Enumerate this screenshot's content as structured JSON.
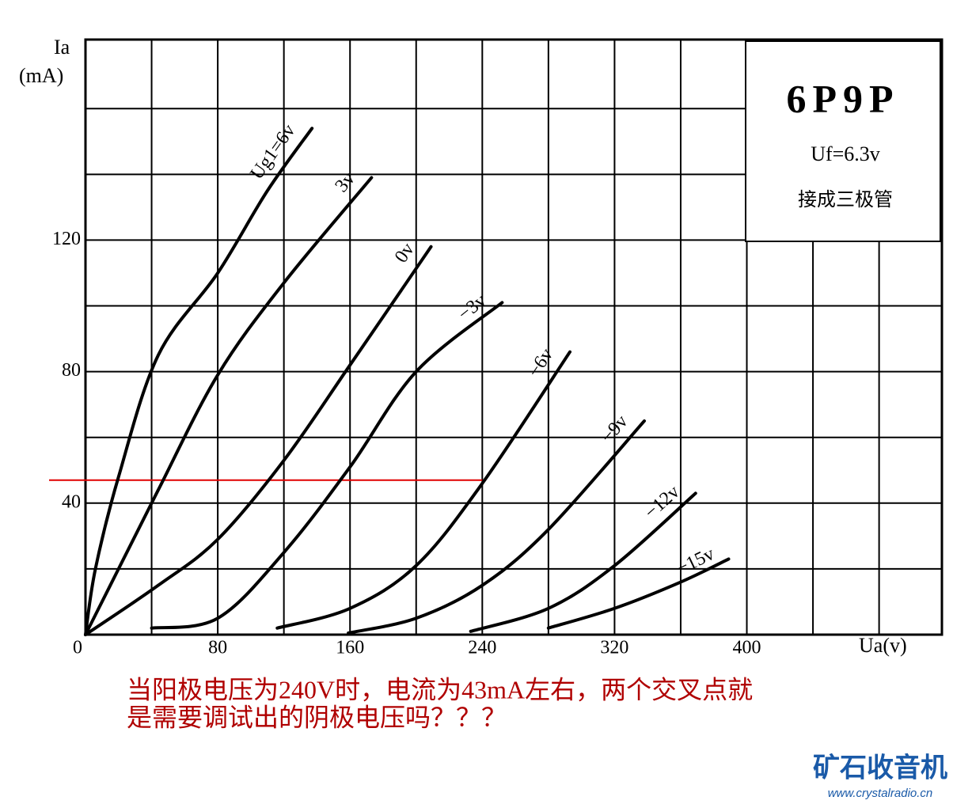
{
  "chart_data": {
    "type": "line",
    "y_label": [
      "Ia",
      "(mA)"
    ],
    "x_label": "Ua(v)",
    "xlim": [
      0,
      518
    ],
    "ylim": [
      0,
      181
    ],
    "xticks": [
      0,
      80,
      160,
      240,
      320,
      400
    ],
    "xminor": [
      40,
      120,
      200,
      280,
      360,
      440,
      480
    ],
    "yticks": [
      40,
      80,
      120
    ],
    "yminor": [
      20,
      60,
      100,
      140,
      160
    ],
    "grid": true,
    "color": "#000000",
    "series": [
      {
        "name": "Ug1=6v",
        "x": [
          0,
          6,
          20,
          44,
          80,
          110,
          137
        ],
        "values": [
          0,
          20,
          48,
          85,
          110,
          135,
          154
        ]
      },
      {
        "name": "3v",
        "x": [
          0,
          20,
          44,
          80,
          120,
          173
        ],
        "values": [
          0,
          20,
          44,
          79,
          107,
          139
        ]
      },
      {
        "name": "0v",
        "x": [
          0,
          44,
          80,
          120,
          160,
          209
        ],
        "values": [
          0,
          15,
          29,
          53,
          82,
          118
        ]
      },
      {
        "name": "−3v",
        "x": [
          40,
          80,
          120,
          160,
          200,
          252
        ],
        "values": [
          2,
          5,
          25,
          51,
          80,
          101
        ]
      },
      {
        "name": "−6v",
        "x": [
          116,
          160,
          200,
          240,
          293
        ],
        "values": [
          2,
          8,
          21,
          46,
          86
        ]
      },
      {
        "name": "−9v",
        "x": [
          159,
          200,
          240,
          280,
          338
        ],
        "values": [
          0.5,
          5,
          15,
          32,
          65
        ]
      },
      {
        "name": "−12v",
        "x": [
          233,
          280,
          320,
          369
        ],
        "values": [
          1,
          8,
          21,
          43
        ]
      },
      {
        "name": "−15v",
        "x": [
          280,
          320,
          360,
          389
        ],
        "values": [
          2,
          8,
          16,
          23
        ]
      }
    ],
    "reference_line": {
      "y": 47,
      "x_end": 240,
      "color": "#e00000"
    },
    "info_box": {
      "title": "6P9P",
      "line1": "Uf=6.3v",
      "line2": "接成三极管"
    }
  },
  "caption": [
    "当阳极电压为240V时，电流为43mA左右，两个交叉点就",
    "是需要调试出的阴极电压吗？？？"
  ],
  "watermark": {
    "name": "矿石收音机",
    "url": "www.crystalradio.cn"
  }
}
